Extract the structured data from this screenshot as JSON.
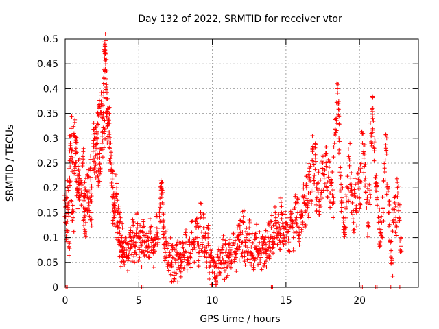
{
  "chart_data": {
    "type": "scatter",
    "title": "Day 132 of 2022, SRMTID for receiver vtor",
    "xlabel": "GPS time / hours",
    "ylabel": "SRMTID / TECUs",
    "xlim": [
      0,
      24
    ],
    "ylim": [
      0,
      0.5
    ],
    "x_ticks": [
      "0",
      "5",
      "10",
      "15",
      "20"
    ],
    "y_ticks": [
      "0",
      "0.05",
      "0.1",
      "0.15",
      "0.2",
      "0.25",
      "0.3",
      "0.35",
      "0.4",
      "0.45",
      "0.5"
    ],
    "grid": true,
    "marker": "+",
    "series": [
      {
        "name": "SRMTID",
        "color": "#ff0000",
        "points": [
          [
            0.0,
            0.16
          ],
          [
            0.05,
            0.13
          ],
          [
            0.1,
            0.19
          ],
          [
            0.12,
            0.11
          ],
          [
            0.2,
            0.17
          ],
          [
            0.25,
            0.08
          ],
          [
            0.3,
            0.22
          ],
          [
            0.35,
            0.28
          ],
          [
            0.4,
            0.32
          ],
          [
            0.45,
            0.15
          ],
          [
            0.5,
            0.25
          ],
          [
            0.55,
            0.14
          ],
          [
            0.6,
            0.31
          ],
          [
            0.65,
            0.24
          ],
          [
            0.7,
            0.27
          ],
          [
            0.75,
            0.3
          ],
          [
            0.8,
            0.2
          ],
          [
            0.85,
            0.22
          ],
          [
            0.9,
            0.18
          ],
          [
            0.95,
            0.23
          ],
          [
            1.0,
            0.21
          ],
          [
            1.1,
            0.19
          ],
          [
            1.2,
            0.25
          ],
          [
            1.25,
            0.16
          ],
          [
            1.3,
            0.14
          ],
          [
            1.35,
            0.2
          ],
          [
            1.4,
            0.13
          ],
          [
            1.5,
            0.18
          ],
          [
            1.55,
            0.22
          ],
          [
            1.6,
            0.17
          ],
          [
            1.7,
            0.24
          ],
          [
            1.75,
            0.15
          ],
          [
            1.8,
            0.2
          ],
          [
            1.9,
            0.29
          ],
          [
            1.95,
            0.26
          ],
          [
            2.0,
            0.31
          ],
          [
            2.05,
            0.25
          ],
          [
            2.1,
            0.3
          ],
          [
            2.15,
            0.28
          ],
          [
            2.2,
            0.33
          ],
          [
            2.25,
            0.22
          ],
          [
            2.3,
            0.36
          ],
          [
            2.35,
            0.27
          ],
          [
            2.4,
            0.24
          ],
          [
            2.45,
            0.37
          ],
          [
            2.5,
            0.29
          ],
          [
            2.55,
            0.34
          ],
          [
            2.6,
            0.41
          ],
          [
            2.65,
            0.31
          ],
          [
            2.7,
            0.49
          ],
          [
            2.72,
            0.47
          ],
          [
            2.75,
            0.45
          ],
          [
            2.78,
            0.42
          ],
          [
            2.8,
            0.38
          ],
          [
            2.85,
            0.35
          ],
          [
            2.9,
            0.3
          ],
          [
            2.95,
            0.36
          ],
          [
            3.0,
            0.33
          ],
          [
            3.05,
            0.28
          ],
          [
            3.1,
            0.25
          ],
          [
            3.15,
            0.21
          ],
          [
            3.2,
            0.22
          ],
          [
            3.25,
            0.18
          ],
          [
            3.3,
            0.14
          ],
          [
            3.35,
            0.17
          ],
          [
            3.4,
            0.15
          ],
          [
            3.5,
            0.2
          ],
          [
            3.55,
            0.12
          ],
          [
            3.6,
            0.15
          ],
          [
            3.65,
            0.1
          ],
          [
            3.7,
            0.13
          ],
          [
            3.75,
            0.09
          ],
          [
            3.8,
            0.07
          ],
          [
            3.85,
            0.1
          ],
          [
            3.9,
            0.06
          ],
          [
            3.95,
            0.08
          ],
          [
            4.0,
            0.07
          ],
          [
            4.1,
            0.09
          ],
          [
            4.2,
            0.06
          ],
          [
            4.3,
            0.08
          ],
          [
            4.4,
            0.1
          ],
          [
            4.5,
            0.08
          ],
          [
            4.6,
            0.11
          ],
          [
            4.7,
            0.07
          ],
          [
            4.8,
            0.09
          ],
          [
            4.9,
            0.12
          ],
          [
            5.0,
            0.08
          ],
          [
            5.1,
            0.1
          ],
          [
            5.2,
            0.07
          ],
          [
            5.3,
            0.11
          ],
          [
            5.4,
            0.09
          ],
          [
            5.5,
            0.08
          ],
          [
            5.6,
            0.1
          ],
          [
            5.7,
            0.06
          ],
          [
            5.8,
            0.12
          ],
          [
            5.9,
            0.08
          ],
          [
            6.0,
            0.07
          ],
          [
            6.1,
            0.1
          ],
          [
            6.2,
            0.12
          ],
          [
            6.3,
            0.09
          ],
          [
            6.4,
            0.15
          ],
          [
            6.5,
            0.19
          ],
          [
            6.55,
            0.21
          ],
          [
            6.6,
            0.17
          ],
          [
            6.65,
            0.13
          ],
          [
            6.7,
            0.1
          ],
          [
            6.8,
            0.07
          ],
          [
            6.9,
            0.09
          ],
          [
            7.0,
            0.05
          ],
          [
            7.1,
            0.07
          ],
          [
            7.2,
            0.04
          ],
          [
            7.3,
            0.06
          ],
          [
            7.4,
            0.03
          ],
          [
            7.5,
            0.05
          ],
          [
            7.6,
            0.07
          ],
          [
            7.7,
            0.04
          ],
          [
            7.8,
            0.06
          ],
          [
            7.9,
            0.05
          ],
          [
            8.0,
            0.08
          ],
          [
            8.1,
            0.06
          ],
          [
            8.2,
            0.09
          ],
          [
            8.3,
            0.05
          ],
          [
            8.4,
            0.07
          ],
          [
            8.5,
            0.06
          ],
          [
            8.6,
            0.11
          ],
          [
            8.7,
            0.09
          ],
          [
            8.8,
            0.08
          ],
          [
            8.9,
            0.12
          ],
          [
            9.0,
            0.1
          ],
          [
            9.1,
            0.07
          ],
          [
            9.2,
            0.15
          ],
          [
            9.3,
            0.09
          ],
          [
            9.4,
            0.12
          ],
          [
            9.5,
            0.08
          ],
          [
            9.6,
            0.06
          ],
          [
            9.7,
            0.1
          ],
          [
            9.8,
            0.04
          ],
          [
            9.9,
            0.06
          ],
          [
            10.0,
            0.03
          ],
          [
            10.1,
            0.05
          ],
          [
            10.2,
            0.02
          ],
          [
            10.3,
            0.04
          ],
          [
            10.4,
            0.06
          ],
          [
            10.5,
            0.03
          ],
          [
            10.6,
            0.05
          ],
          [
            10.7,
            0.08
          ],
          [
            10.8,
            0.04
          ],
          [
            10.9,
            0.07
          ],
          [
            11.0,
            0.05
          ],
          [
            11.1,
            0.06
          ],
          [
            11.2,
            0.08
          ],
          [
            11.3,
            0.05
          ],
          [
            11.4,
            0.09
          ],
          [
            11.5,
            0.07
          ],
          [
            11.6,
            0.06
          ],
          [
            11.7,
            0.1
          ],
          [
            11.8,
            0.08
          ],
          [
            11.9,
            0.11
          ],
          [
            12.0,
            0.09
          ],
          [
            12.1,
            0.13
          ],
          [
            12.2,
            0.07
          ],
          [
            12.3,
            0.1
          ],
          [
            12.4,
            0.08
          ],
          [
            12.5,
            0.12
          ],
          [
            12.6,
            0.07
          ],
          [
            12.7,
            0.09
          ],
          [
            12.8,
            0.06
          ],
          [
            12.9,
            0.08
          ],
          [
            13.0,
            0.1
          ],
          [
            13.1,
            0.07
          ],
          [
            13.2,
            0.09
          ],
          [
            13.3,
            0.06
          ],
          [
            13.4,
            0.08
          ],
          [
            13.5,
            0.07
          ],
          [
            13.6,
            0.09
          ],
          [
            13.7,
            0.06
          ],
          [
            13.8,
            0.1
          ],
          [
            13.9,
            0.08
          ],
          [
            14.0,
            0.12
          ],
          [
            14.1,
            0.09
          ],
          [
            14.2,
            0.11
          ],
          [
            14.3,
            0.14
          ],
          [
            14.4,
            0.1
          ],
          [
            14.5,
            0.13
          ],
          [
            14.6,
            0.09
          ],
          [
            14.7,
            0.15
          ],
          [
            14.8,
            0.12
          ],
          [
            14.9,
            0.1
          ],
          [
            15.0,
            0.13
          ],
          [
            15.1,
            0.11
          ],
          [
            15.2,
            0.09
          ],
          [
            15.3,
            0.14
          ],
          [
            15.4,
            0.12
          ],
          [
            15.5,
            0.1
          ],
          [
            15.6,
            0.16
          ],
          [
            15.7,
            0.13
          ],
          [
            15.8,
            0.15
          ],
          [
            15.9,
            0.11
          ],
          [
            16.0,
            0.14
          ],
          [
            16.1,
            0.12
          ],
          [
            16.2,
            0.18
          ],
          [
            16.3,
            0.15
          ],
          [
            16.4,
            0.2
          ],
          [
            16.5,
            0.17
          ],
          [
            16.6,
            0.24
          ],
          [
            16.7,
            0.19
          ],
          [
            16.8,
            0.28
          ],
          [
            16.9,
            0.22
          ],
          [
            17.0,
            0.26
          ],
          [
            17.1,
            0.18
          ],
          [
            17.2,
            0.21
          ],
          [
            17.3,
            0.16
          ],
          [
            17.4,
            0.19
          ],
          [
            17.5,
            0.25
          ],
          [
            17.6,
            0.22
          ],
          [
            17.7,
            0.27
          ],
          [
            17.8,
            0.2
          ],
          [
            17.9,
            0.23
          ],
          [
            18.0,
            0.19
          ],
          [
            18.1,
            0.21
          ],
          [
            18.2,
            0.17
          ],
          [
            18.3,
            0.29
          ],
          [
            18.4,
            0.34
          ],
          [
            18.5,
            0.4
          ],
          [
            18.55,
            0.37
          ],
          [
            18.6,
            0.3
          ],
          [
            18.7,
            0.22
          ],
          [
            18.8,
            0.18
          ],
          [
            18.9,
            0.14
          ],
          [
            19.0,
            0.11
          ],
          [
            19.1,
            0.16
          ],
          [
            19.2,
            0.2
          ],
          [
            19.3,
            0.26
          ],
          [
            19.4,
            0.22
          ],
          [
            19.5,
            0.17
          ],
          [
            19.6,
            0.13
          ],
          [
            19.7,
            0.19
          ],
          [
            19.8,
            0.15
          ],
          [
            19.9,
            0.21
          ],
          [
            20.0,
            0.18
          ],
          [
            20.1,
            0.24
          ],
          [
            20.2,
            0.29
          ],
          [
            20.3,
            0.26
          ],
          [
            20.4,
            0.22
          ],
          [
            20.5,
            0.17
          ],
          [
            20.6,
            0.13
          ],
          [
            20.7,
            0.19
          ],
          [
            20.8,
            0.31
          ],
          [
            20.85,
            0.36
          ],
          [
            20.9,
            0.34
          ],
          [
            21.0,
            0.28
          ],
          [
            21.1,
            0.22
          ],
          [
            21.2,
            0.18
          ],
          [
            21.3,
            0.14
          ],
          [
            21.4,
            0.11
          ],
          [
            21.5,
            0.13
          ],
          [
            21.6,
            0.16
          ],
          [
            21.7,
            0.24
          ],
          [
            21.8,
            0.28
          ],
          [
            21.9,
            0.2
          ],
          [
            22.0,
            0.15
          ],
          [
            22.1,
            0.09
          ],
          [
            22.2,
            0.05
          ],
          [
            22.3,
            0.13
          ],
          [
            22.4,
            0.17
          ],
          [
            22.5,
            0.12
          ],
          [
            22.6,
            0.19
          ],
          [
            22.7,
            0.14
          ],
          [
            22.8,
            0.1
          ]
        ]
      }
    ],
    "zero_markers_x": [
      0.05,
      5.2,
      14.0,
      20.1,
      21.1,
      22.1,
      22.7
    ]
  }
}
